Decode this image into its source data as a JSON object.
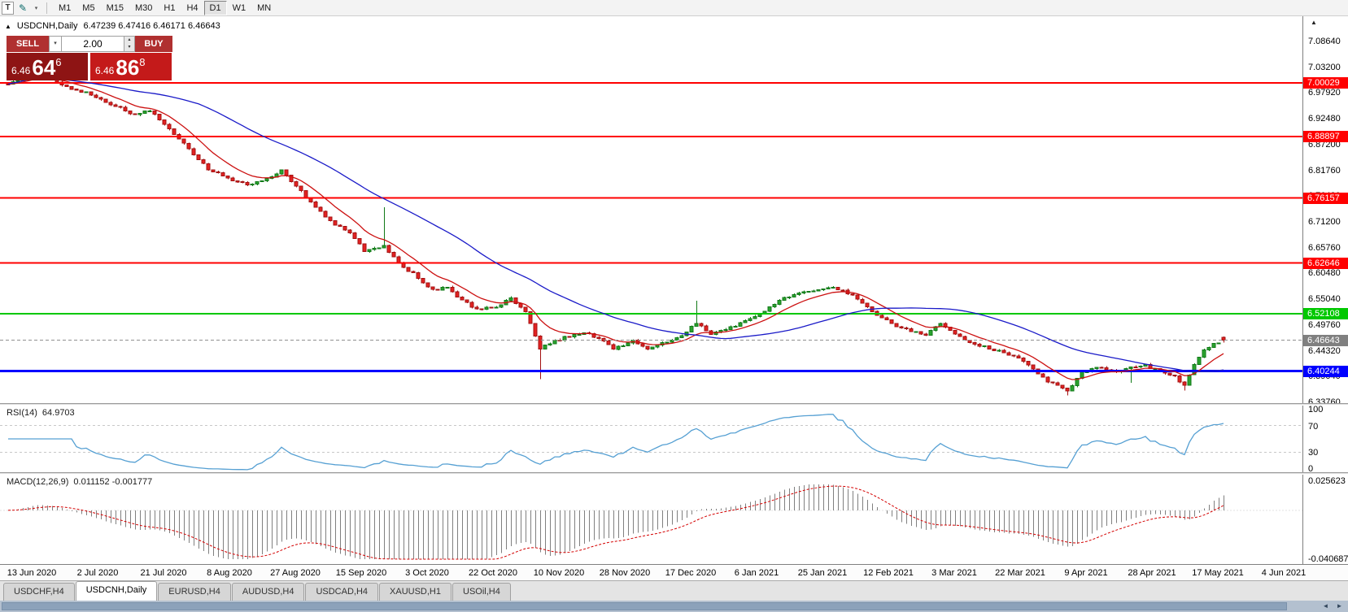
{
  "toolbar": {
    "handle_label": "T",
    "timeframes": [
      "M1",
      "M5",
      "M15",
      "M30",
      "H1",
      "H4",
      "D1",
      "W1",
      "MN"
    ],
    "active_timeframe": "D1"
  },
  "ui_icons": {
    "pencil": "✎",
    "dropdown": "▾",
    "spin_up": "▴",
    "spin_down": "▾",
    "axis_up": "▲",
    "scroll_left": "◄",
    "scroll_right": "►"
  },
  "chart_header": {
    "collapse_icon": "▲",
    "symbol_title": "USDCNH,Daily",
    "ohlc_text": "6.47239 6.47416 6.46171 6.46643"
  },
  "trade_widget": {
    "sell_label": "SELL",
    "buy_label": "BUY",
    "volume_value": "2.00",
    "sell_price": {
      "small": "6.46",
      "big": "64",
      "sup": "6"
    },
    "buy_price": {
      "small": "6.46",
      "big": "86",
      "sup": "8"
    }
  },
  "price_axis": {
    "labels": [
      "7.08640",
      "7.03200",
      "6.97920",
      "6.92480",
      "6.87200",
      "6.81760",
      "6.76480",
      "6.71200",
      "6.65760",
      "6.60480",
      "6.55040",
      "6.49760",
      "6.44320",
      "6.39040",
      "6.33760"
    ]
  },
  "indicator_panels": {
    "rsi": {
      "name_label": "RSI(14)",
      "value_label": "64.9703",
      "scale_labels": [
        "100",
        "70",
        "30",
        "0"
      ],
      "levels": [
        70,
        30
      ],
      "range": [
        0,
        100
      ],
      "line_color": "#56a0d3"
    },
    "macd": {
      "name_label": "MACD(12,26,9)",
      "value_label": "0.011152 -0.001777",
      "scale_top": "0.025623",
      "scale_bottom": "-0.040687",
      "range": [
        -0.040687,
        0.025623
      ],
      "histogram_color": "#808080",
      "signal_color": "#d40000"
    }
  },
  "time_axis": {
    "labels": [
      "13 Jun 2020",
      "2 Jul 2020",
      "21 Jul 2020",
      "8 Aug 2020",
      "27 Aug 2020",
      "15 Sep 2020",
      "3 Oct 2020",
      "22 Oct 2020",
      "10 Nov 2020",
      "28 Nov 2020",
      "17 Dec 2020",
      "6 Jan 2021",
      "25 Jan 2021",
      "12 Feb 2021",
      "3 Mar 2021",
      "22 Mar 2021",
      "9 Apr 2021",
      "28 Apr 2021",
      "17 May 2021",
      "4 Jun 2021"
    ]
  },
  "chart_tabs": [
    {
      "label": "USDCHF,H4",
      "active": false
    },
    {
      "label": "USDCNH,Daily",
      "active": true
    },
    {
      "label": "EURUSD,H4",
      "active": false
    },
    {
      "label": "AUDUSD,H4",
      "active": false
    },
    {
      "label": "USDCAD,H4",
      "active": false
    },
    {
      "label": "XAUUSD,H1",
      "active": false
    },
    {
      "label": "USOil,H4",
      "active": false
    }
  ],
  "colors": {
    "candle_up_fill": "#2aa32e",
    "candle_up_stroke": "#117a18",
    "candle_down_fill": "#e32222",
    "candle_down_stroke": "#a31111",
    "current_price_line": "#909090"
  },
  "chart_data": {
    "type": "candlestick",
    "title": "USDCNH,Daily",
    "last_bar_ohlc": {
      "open": 6.47239,
      "high": 6.47416,
      "low": 6.46171,
      "close": 6.46643
    },
    "current_price": 6.46643,
    "ylim": [
      6.3376,
      7.0864
    ],
    "bar_count": 250,
    "close_waypoints": [
      [
        0,
        7.0
      ],
      [
        5,
        7.018
      ],
      [
        9,
        7.008
      ],
      [
        12,
        6.993
      ],
      [
        17,
        6.976
      ],
      [
        22,
        6.952
      ],
      [
        26,
        6.934
      ],
      [
        29,
        6.944
      ],
      [
        33,
        6.906
      ],
      [
        37,
        6.862
      ],
      [
        41,
        6.822
      ],
      [
        45,
        6.803
      ],
      [
        49,
        6.789
      ],
      [
        53,
        6.801
      ],
      [
        56,
        6.818
      ],
      [
        59,
        6.786
      ],
      [
        63,
        6.741
      ],
      [
        67,
        6.706
      ],
      [
        70,
        6.689
      ],
      [
        73,
        6.652
      ],
      [
        77,
        6.663
      ],
      [
        80,
        6.626
      ],
      [
        83,
        6.604
      ],
      [
        87,
        6.571
      ],
      [
        90,
        6.577
      ],
      [
        93,
        6.549
      ],
      [
        96,
        6.531
      ],
      [
        100,
        6.536
      ],
      [
        103,
        6.553
      ],
      [
        106,
        6.526
      ],
      [
        109,
        6.449
      ],
      [
        111,
        6.461
      ],
      [
        114,
        6.473
      ],
      [
        118,
        6.483
      ],
      [
        121,
        6.471
      ],
      [
        124,
        6.449
      ],
      [
        128,
        6.464
      ],
      [
        131,
        6.446
      ],
      [
        134,
        6.459
      ],
      [
        138,
        6.475
      ],
      [
        141,
        6.503
      ],
      [
        144,
        6.481
      ],
      [
        148,
        6.493
      ],
      [
        151,
        6.506
      ],
      [
        154,
        6.521
      ],
      [
        158,
        6.549
      ],
      [
        161,
        6.561
      ],
      [
        164,
        6.569
      ],
      [
        168,
        6.576
      ],
      [
        171,
        6.569
      ],
      [
        174,
        6.553
      ],
      [
        178,
        6.519
      ],
      [
        181,
        6.501
      ],
      [
        184,
        6.489
      ],
      [
        188,
        6.479
      ],
      [
        191,
        6.499
      ],
      [
        194,
        6.479
      ],
      [
        197,
        6.461
      ],
      [
        200,
        6.454
      ],
      [
        203,
        6.443
      ],
      [
        207,
        6.431
      ],
      [
        210,
        6.406
      ],
      [
        213,
        6.381
      ],
      [
        217,
        6.361
      ],
      [
        220,
        6.399
      ],
      [
        223,
        6.409
      ],
      [
        227,
        6.403
      ],
      [
        230,
        6.409
      ],
      [
        233,
        6.414
      ],
      [
        236,
        6.401
      ],
      [
        239,
        6.391
      ],
      [
        241,
        6.373
      ],
      [
        243,
        6.416
      ],
      [
        245,
        6.446
      ],
      [
        247,
        6.459
      ],
      [
        249,
        6.46643
      ]
    ],
    "spikes": [
      {
        "bar": 77,
        "high": 6.742
      },
      {
        "bar": 109,
        "low": 6.386
      },
      {
        "bar": 141,
        "high": 6.548
      },
      {
        "bar": 217,
        "low": 6.352
      },
      {
        "bar": 230,
        "low": 6.378
      },
      {
        "bar": 241,
        "low": 6.362
      }
    ],
    "hlines": [
      {
        "value": 7.00029,
        "label": "7.00029",
        "color": "#ff0000",
        "width": 2
      },
      {
        "value": 6.88897,
        "label": "6.88897",
        "color": "#ff0000",
        "width": 2
      },
      {
        "value": 6.76157,
        "label": "6.76157",
        "color": "#ff0000",
        "width": 2
      },
      {
        "value": 6.62646,
        "label": "6.62646",
        "color": "#ff0000",
        "width": 2
      },
      {
        "value": 6.52108,
        "label": "6.52108",
        "color": "#00c800",
        "width": 2
      },
      {
        "value": 6.40244,
        "label": "6.40244",
        "color": "#0000ff",
        "width": 3
      }
    ],
    "current_price_line": {
      "value": 6.46643,
      "label": "6.46643",
      "color": "#808080"
    },
    "moving_averages": [
      {
        "type": "ema",
        "period": 10,
        "color": "#cc1111"
      },
      {
        "type": "sma",
        "period": 40,
        "color": "#1a1ac8"
      }
    ],
    "indicators": {
      "rsi": {
        "period": 14,
        "current": 64.9703
      },
      "macd": {
        "fast": 12,
        "slow": 26,
        "signal": 9,
        "current_main": 0.011152,
        "current_signal": -0.001777
      }
    }
  }
}
